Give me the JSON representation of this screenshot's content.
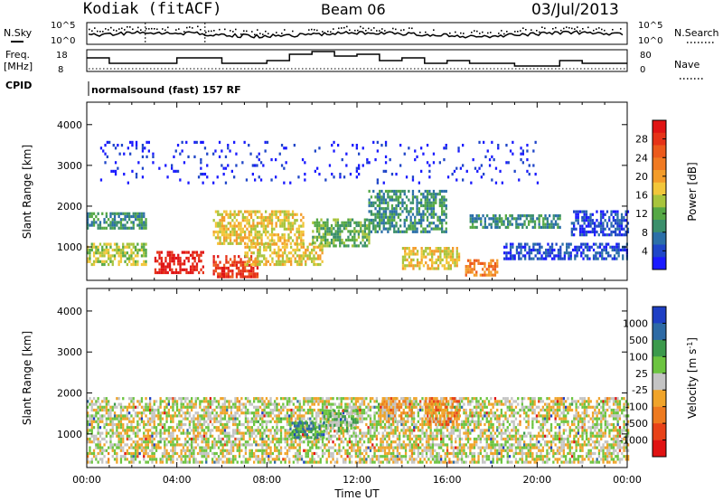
{
  "header": {
    "station": "Kodiak (fitACF)",
    "beam": "Beam 06",
    "date": "03/Jul/2013"
  },
  "summary": {
    "nsky_label": "N.Sky",
    "nsky_ticks": [
      "10^5",
      "10^0"
    ],
    "nsearch_label": "N.Search",
    "nsearch_ticks": [
      "10^5",
      "10^0"
    ],
    "freq_label_1": "Freq.",
    "freq_label_2": "[MHz]",
    "freq_ticks": [
      "18",
      "8"
    ],
    "nave_label": "Nave",
    "nave_ticks": [
      "80",
      "0"
    ],
    "cpid_label": "CPID",
    "cpid_value": "normalsound (fast) 157 RF"
  },
  "x_axis": {
    "label": "Time UT",
    "tick_labels": [
      "00:00",
      "04:00",
      "08:00",
      "12:00",
      "16:00",
      "20:00",
      "00:00"
    ]
  },
  "chart_data": [
    {
      "type": "heatmap",
      "quantity": "Power",
      "ylabel": "Slant Range [km]",
      "yticks": [
        1000,
        2000,
        3000,
        4000
      ],
      "ylim": [
        180,
        4550
      ],
      "xlim": [
        0,
        24
      ],
      "colorbar": {
        "label": "Power [dB]",
        "tick_labels": [
          "4",
          "8",
          "12",
          "16",
          "20",
          "24",
          "28"
        ],
        "colors": [
          "#1a1aff",
          "#1f46c8",
          "#2b6fa8",
          "#3b8f6b",
          "#55a845",
          "#a8c43c",
          "#f2c63a",
          "#f39c2a",
          "#f07a22",
          "#ec5a1c",
          "#e63318",
          "#e01414"
        ]
      },
      "echo_regions": [
        {
          "t": [
            0.0,
            2.6
          ],
          "r": [
            1450,
            1850
          ],
          "level": 3
        },
        {
          "t": [
            0.0,
            2.6
          ],
          "r": [
            550,
            1100
          ],
          "level": 5
        },
        {
          "t": [
            3.0,
            5.2
          ],
          "r": [
            400,
            900
          ],
          "level": 11
        },
        {
          "t": [
            5.6,
            7.6
          ],
          "r": [
            300,
            800
          ],
          "level": 10
        },
        {
          "t": [
            5.6,
            9.6
          ],
          "r": [
            1100,
            1900
          ],
          "level": 6
        },
        {
          "t": [
            7.0,
            10.5
          ],
          "r": [
            600,
            1100
          ],
          "level": 6
        },
        {
          "t": [
            10.0,
            12.5
          ],
          "r": [
            1000,
            1700
          ],
          "level": 4
        },
        {
          "t": [
            12.5,
            16.0
          ],
          "r": [
            1400,
            2400
          ],
          "level": 3
        },
        {
          "t": [
            14.0,
            16.5
          ],
          "r": [
            500,
            1000
          ],
          "level": 6
        },
        {
          "t": [
            16.8,
            18.2
          ],
          "r": [
            300,
            700
          ],
          "level": 8
        },
        {
          "t": [
            17.0,
            21.0
          ],
          "r": [
            1500,
            1800
          ],
          "level": 3
        },
        {
          "t": [
            18.5,
            24.0
          ],
          "r": [
            700,
            1100
          ],
          "level": 1
        },
        {
          "t": [
            21.5,
            24.0
          ],
          "r": [
            1300,
            1900
          ],
          "level": 1
        },
        {
          "t": [
            0.5,
            20.0
          ],
          "r": [
            2600,
            3600
          ],
          "level": 0
        }
      ]
    },
    {
      "type": "heatmap",
      "quantity": "Velocity",
      "ylabel": "Slant Range [km]",
      "yticks": [
        1000,
        2000,
        3000,
        4000
      ],
      "ylim": [
        180,
        4550
      ],
      "xlim": [
        0,
        24
      ],
      "colorbar": {
        "label": "Velocity [m s-1]",
        "tick_labels": [
          "1000",
          "500",
          "100",
          "25",
          "-25",
          "-100",
          "-500",
          "-1000"
        ],
        "colors": [
          "#1e3fc4",
          "#2d6aa5",
          "#3c9a4c",
          "#6cc440",
          "#c4c4c4",
          "#f0a42a",
          "#ee7a1f",
          "#e84218",
          "#e01212"
        ]
      },
      "echo_regions": [
        {
          "t": [
            0.0,
            24.0
          ],
          "r": [
            300,
            1900
          ],
          "level": 4
        },
        {
          "t": [
            10.5,
            12.0
          ],
          "r": [
            1100,
            1600
          ],
          "level": 3
        },
        {
          "t": [
            13.0,
            14.5
          ],
          "r": [
            1300,
            1900
          ],
          "level": 5
        },
        {
          "t": [
            15.0,
            16.5
          ],
          "r": [
            1200,
            1900
          ],
          "level": 6
        },
        {
          "t": [
            9.0,
            10.5
          ],
          "r": [
            900,
            1300
          ],
          "level": 2
        }
      ]
    }
  ]
}
